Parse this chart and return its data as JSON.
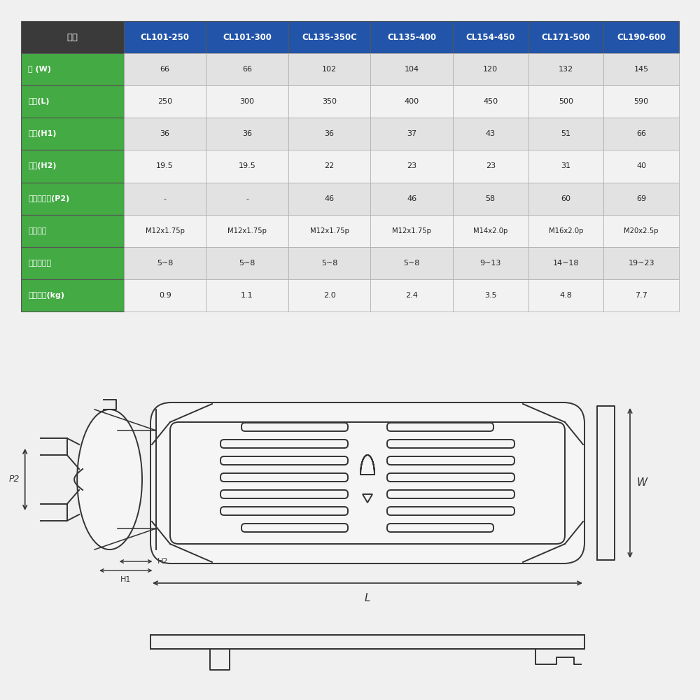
{
  "bg_color": "#f0f0f0",
  "table_bg": "#ffffff",
  "table_header_row_bg": "#2255aa",
  "table_header_col_bg": "#3a3a3a",
  "table_row_label_bg": "#44aa44",
  "table_row_odd_bg": "#e2e2e2",
  "table_row_even_bg": "#f2f2f2",
  "table_header_text_color": "#ffffff",
  "table_data_text_color": "#222222",
  "table_label_text_color": "#ffffff",
  "col_headers": [
    "品名",
    "CL101-250",
    "CL101-300",
    "CL135-350C",
    "CL135-400",
    "CL154-450",
    "CL171-500",
    "CL190-600"
  ],
  "row_labels": [
    "幅 (W)",
    "長さ(L)",
    "高さ(H1)",
    "高さ(H2)",
    "取付ピッチ(P2)",
    "取付ネジ",
    "締付トルク",
    "製品重量(kg)"
  ],
  "table_data": [
    [
      "66",
      "66",
      "102",
      "104",
      "120",
      "132",
      "145"
    ],
    [
      "250",
      "300",
      "350",
      "400",
      "450",
      "500",
      "590"
    ],
    [
      "36",
      "36",
      "36",
      "37",
      "43",
      "51",
      "66"
    ],
    [
      "19.5",
      "19.5",
      "22",
      "23",
      "23",
      "31",
      "40"
    ],
    [
      "-",
      "-",
      "46",
      "46",
      "58",
      "60",
      "69"
    ],
    [
      "M12x1.75p",
      "M12x1.75p",
      "M12x1.75p",
      "M12x1.75p",
      "M14x2.0p",
      "M16x2.0p",
      "M20x2.5p"
    ],
    [
      "5~8",
      "5~8",
      "5~8",
      "5~8",
      "9~13",
      "14~18",
      "19~23"
    ],
    [
      "0.9",
      "1.1",
      "2.0",
      "2.4",
      "3.5",
      "4.8",
      "7.7"
    ]
  ],
  "line_color": "#333333",
  "drawing_bg": "#f0f0f0"
}
